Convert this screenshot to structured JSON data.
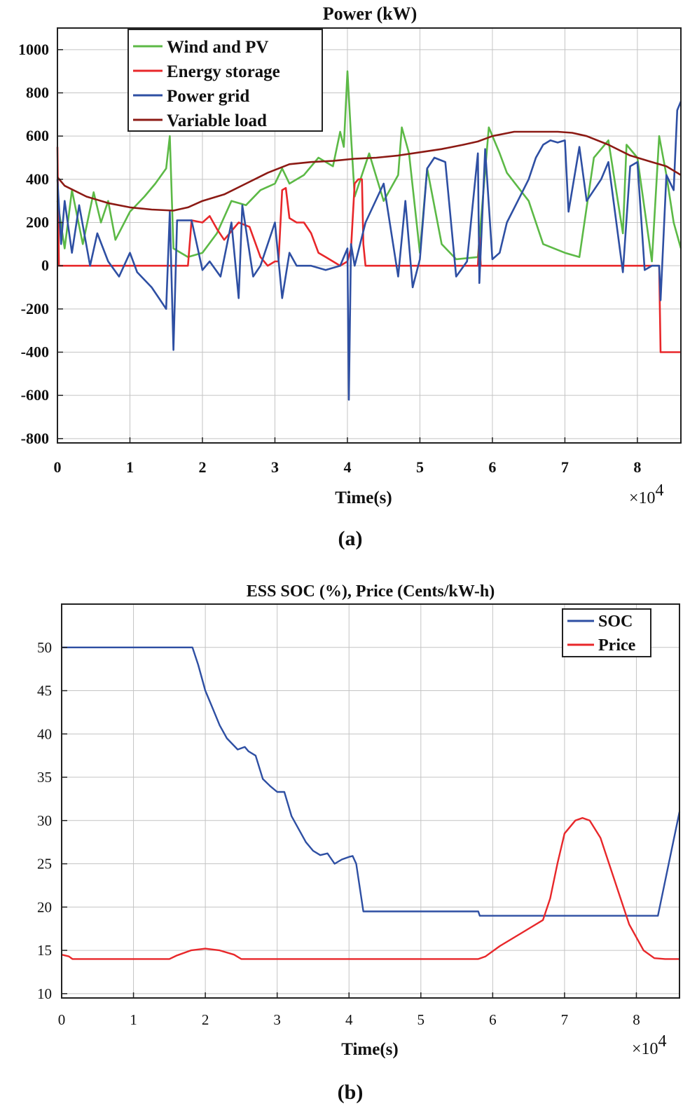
{
  "chart_data": [
    {
      "type": "line",
      "panel_label": "(a)",
      "title": "Power  (kW)",
      "xlabel": "Time(s)",
      "x_multiplier": "×10",
      "x_multiplier_exp": "4",
      "xlim": [
        0,
        8.6
      ],
      "ylim": [
        -820,
        1100
      ],
      "x_ticks": [
        0,
        1,
        2,
        3,
        4,
        5,
        6,
        7,
        8
      ],
      "x_tick_labels": [
        "0",
        "1",
        "2",
        "3",
        "4",
        "5",
        "6",
        "7",
        "8"
      ],
      "y_ticks": [
        -800,
        -600,
        -400,
        -200,
        0,
        200,
        400,
        600,
        800,
        1000
      ],
      "y_tick_labels": [
        "-800",
        "-600",
        "-400",
        "-200",
        "0",
        "200",
        "400",
        "600",
        "800",
        "1000"
      ],
      "grid": true,
      "legend_position": "top-left",
      "series": [
        {
          "name": "Wind and PV",
          "color": "#5cb946",
          "x": [
            0,
            0.1,
            0.2,
            0.35,
            0.5,
            0.6,
            0.7,
            0.8,
            1.0,
            1.2,
            1.35,
            1.5,
            1.55,
            1.6,
            1.8,
            2.0,
            2.2,
            2.4,
            2.6,
            2.8,
            3.0,
            3.1,
            3.2,
            3.4,
            3.6,
            3.8,
            3.9,
            3.95,
            4.0,
            4.05,
            4.1,
            4.3,
            4.5,
            4.7,
            4.75,
            4.85,
            5.0,
            5.1,
            5.3,
            5.5,
            5.8,
            5.95,
            6.1,
            6.2,
            6.5,
            6.7,
            7.0,
            7.2,
            7.4,
            7.6,
            7.8,
            7.85,
            8.0,
            8.2,
            8.3,
            8.4,
            8.5,
            8.6
          ],
          "values": [
            300,
            80,
            350,
            100,
            340,
            200,
            300,
            120,
            250,
            320,
            380,
            450,
            600,
            80,
            40,
            60,
            150,
            300,
            280,
            350,
            380,
            450,
            380,
            420,
            500,
            460,
            620,
            550,
            900,
            600,
            320,
            520,
            300,
            420,
            640,
            520,
            60,
            450,
            100,
            30,
            40,
            640,
            520,
            430,
            300,
            100,
            60,
            40,
            500,
            580,
            150,
            560,
            500,
            20,
            600,
            420,
            200,
            80
          ]
        },
        {
          "name": "Energy storage",
          "color": "#e8272a",
          "x": [
            0,
            0.02,
            0.05,
            1.8,
            1.85,
            2.0,
            2.1,
            2.2,
            2.3,
            2.5,
            2.65,
            2.8,
            2.9,
            3.0,
            3.05,
            3.1,
            3.15,
            3.2,
            3.3,
            3.4,
            3.5,
            3.6,
            3.7,
            3.8,
            3.9,
            4.0,
            4.05,
            4.1,
            4.15,
            4.2,
            4.22,
            4.25,
            5.8,
            5.82,
            5.84,
            8.3,
            8.32,
            8.6
          ],
          "values": [
            550,
            0,
            0,
            0,
            210,
            200,
            230,
            170,
            120,
            200,
            180,
            40,
            0,
            20,
            20,
            350,
            360,
            220,
            200,
            200,
            150,
            60,
            40,
            20,
            0,
            20,
            80,
            380,
            400,
            400,
            100,
            0,
            0,
            130,
            0,
            0,
            -400,
            -400
          ]
        },
        {
          "name": "Power grid",
          "color": "#2e4fa3",
          "x": [
            0,
            0.05,
            0.1,
            0.2,
            0.3,
            0.45,
            0.55,
            0.7,
            0.85,
            1.0,
            1.1,
            1.3,
            1.4,
            1.5,
            1.55,
            1.6,
            1.65,
            1.85,
            2.0,
            2.1,
            2.25,
            2.4,
            2.5,
            2.55,
            2.7,
            2.8,
            3.0,
            3.1,
            3.2,
            3.3,
            3.5,
            3.7,
            3.9,
            4.0,
            4.02,
            4.05,
            4.1,
            4.25,
            4.5,
            4.7,
            4.8,
            4.9,
            5.0,
            5.1,
            5.2,
            5.35,
            5.5,
            5.65,
            5.8,
            5.82,
            5.9,
            6.0,
            6.1,
            6.2,
            6.35,
            6.5,
            6.6,
            6.7,
            6.8,
            6.9,
            7.0,
            7.05,
            7.2,
            7.3,
            7.5,
            7.6,
            7.8,
            7.9,
            8.0,
            8.1,
            8.2,
            8.3,
            8.32,
            8.4,
            8.5,
            8.55,
            8.6
          ],
          "values": [
            400,
            100,
            300,
            60,
            280,
            0,
            150,
            20,
            -50,
            60,
            -30,
            -100,
            -150,
            -200,
            250,
            -390,
            210,
            210,
            -20,
            20,
            -50,
            200,
            -150,
            280,
            -50,
            0,
            200,
            -150,
            60,
            0,
            0,
            -20,
            0,
            80,
            -620,
            100,
            0,
            200,
            380,
            -50,
            300,
            -100,
            30,
            450,
            500,
            480,
            -50,
            20,
            520,
            -80,
            540,
            30,
            60,
            200,
            300,
            400,
            500,
            560,
            580,
            570,
            580,
            250,
            550,
            300,
            400,
            480,
            -30,
            460,
            480,
            -20,
            0,
            0,
            -160,
            420,
            350,
            720,
            760
          ]
        },
        {
          "name": "Variable load",
          "color": "#8c1a14",
          "x": [
            0,
            0.1,
            0.4,
            0.7,
            1.0,
            1.3,
            1.6,
            1.8,
            2.0,
            2.3,
            2.6,
            2.9,
            3.2,
            3.5,
            3.8,
            4.1,
            4.4,
            4.7,
            5.0,
            5.3,
            5.6,
            5.8,
            6.0,
            6.3,
            6.6,
            6.9,
            7.1,
            7.3,
            7.6,
            7.9,
            8.2,
            8.4,
            8.6
          ],
          "values": [
            410,
            370,
            320,
            290,
            270,
            260,
            255,
            270,
            300,
            330,
            380,
            430,
            470,
            480,
            485,
            495,
            500,
            510,
            525,
            540,
            560,
            575,
            600,
            620,
            620,
            620,
            615,
            600,
            560,
            510,
            480,
            460,
            420
          ]
        }
      ]
    },
    {
      "type": "line",
      "panel_label": "(b)",
      "title": "ESS SOC (%), Price (Cents/kW-h)",
      "xlabel": "Time(s)",
      "x_multiplier": "×10",
      "x_multiplier_exp": "4",
      "xlim": [
        0,
        8.6
      ],
      "ylim": [
        9.5,
        55
      ],
      "x_ticks": [
        0,
        1,
        2,
        3,
        4,
        5,
        6,
        7,
        8
      ],
      "x_tick_labels": [
        "0",
        "1",
        "2",
        "3",
        "4",
        "5",
        "6",
        "7",
        "8"
      ],
      "y_ticks": [
        10,
        15,
        20,
        25,
        30,
        35,
        40,
        45,
        50
      ],
      "y_tick_labels": [
        "10",
        "15",
        "20",
        "25",
        "30",
        "35",
        "40",
        "45",
        "50"
      ],
      "grid": true,
      "legend_position": "top-right",
      "series": [
        {
          "name": "SOC",
          "color": "#2e4fa3",
          "x": [
            0,
            1.82,
            1.9,
            2.0,
            2.1,
            2.2,
            2.3,
            2.45,
            2.55,
            2.6,
            2.7,
            2.8,
            2.9,
            3.0,
            3.1,
            3.2,
            3.3,
            3.4,
            3.5,
            3.6,
            3.7,
            3.8,
            3.9,
            4.0,
            4.05,
            4.1,
            4.2,
            4.22,
            5.8,
            5.82,
            8.3,
            8.6
          ],
          "values": [
            50,
            50,
            48,
            45,
            43,
            41,
            39.5,
            38.2,
            38.5,
            38,
            37.5,
            34.8,
            34,
            33.3,
            33.3,
            30.5,
            29,
            27.5,
            26.5,
            26,
            26.2,
            25,
            25.5,
            25.8,
            25.9,
            25,
            19.5,
            19.5,
            19.5,
            19,
            19,
            31
          ]
        },
        {
          "name": "Price",
          "color": "#e8272a",
          "x": [
            0,
            0.1,
            0.15,
            1.5,
            1.6,
            1.8,
            2.0,
            2.2,
            2.4,
            2.5,
            5.8,
            5.9,
            6.1,
            6.4,
            6.7,
            6.8,
            6.9,
            7.0,
            7.15,
            7.25,
            7.35,
            7.5,
            7.7,
            7.9,
            8.1,
            8.25,
            8.4,
            8.6
          ],
          "values": [
            14.5,
            14.3,
            14,
            14,
            14.4,
            15,
            15.2,
            15,
            14.5,
            14,
            14,
            14.3,
            15.5,
            17,
            18.5,
            21,
            25,
            28.5,
            30,
            30.3,
            30,
            28,
            23,
            18,
            15,
            14.1,
            14,
            14
          ]
        }
      ]
    }
  ]
}
